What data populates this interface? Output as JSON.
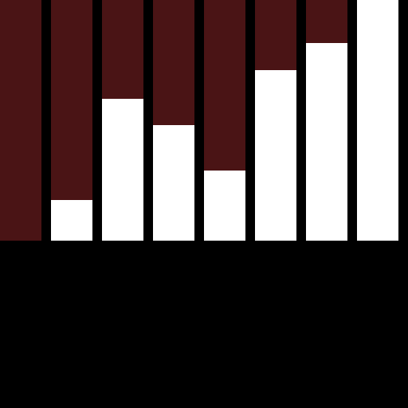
{
  "colors": {
    "background": "#000000",
    "track": "#4a1415",
    "fill": "#ffffff"
  },
  "levels": [
    {
      "id": "level-1",
      "fraction": 0.0
    },
    {
      "id": "level-2",
      "fraction": 0.17
    },
    {
      "id": "level-3",
      "fraction": 0.59
    },
    {
      "id": "level-4",
      "fraction": 0.48
    },
    {
      "id": "level-5",
      "fraction": 0.29
    },
    {
      "id": "level-6",
      "fraction": 0.71
    },
    {
      "id": "level-7",
      "fraction": 0.82
    },
    {
      "id": "level-8",
      "fraction": 1.0
    }
  ]
}
